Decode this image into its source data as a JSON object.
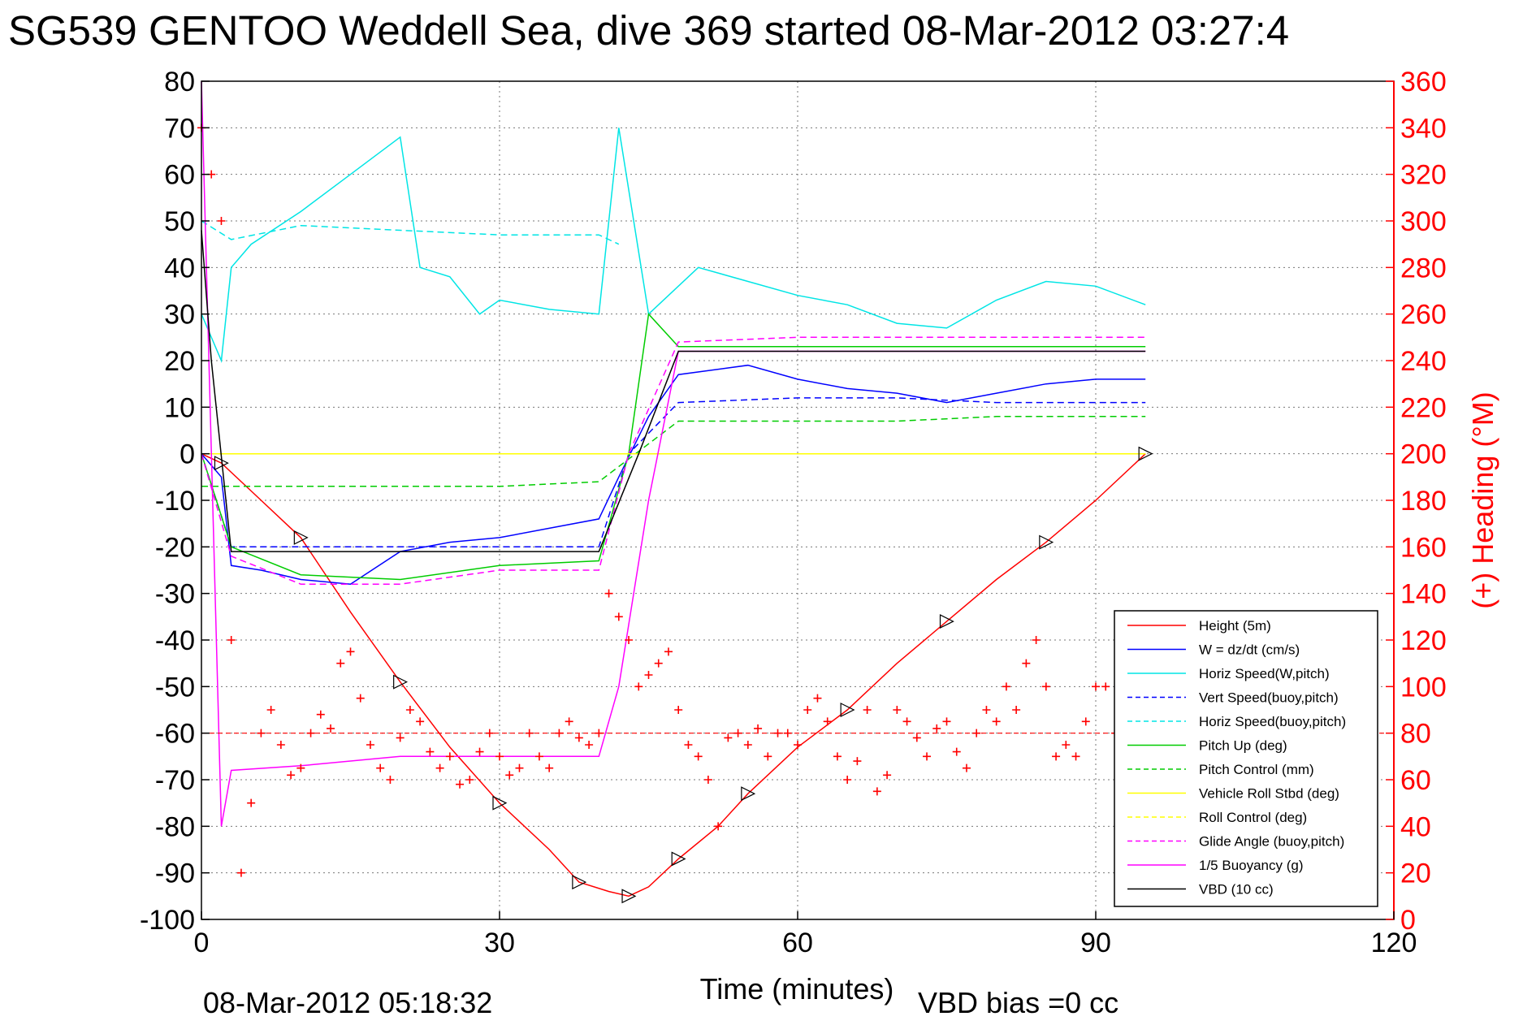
{
  "chart_data": {
    "type": "line",
    "title": "SG539 GENTOO Weddell Sea, dive 369 started 08-Mar-2012 03:27:4",
    "xlabel": "Time (minutes)",
    "ylabel": "",
    "ylabel_right": "(+) Heading (°M)",
    "xlim": [
      0,
      120
    ],
    "ylim": [
      -100,
      80
    ],
    "ylim_right": [
      0,
      360
    ],
    "x_ticks": [
      0,
      30,
      60,
      90,
      120
    ],
    "y_ticks": [
      -100,
      -90,
      -80,
      -70,
      -60,
      -50,
      -40,
      -30,
      -20,
      -10,
      0,
      10,
      20,
      30,
      40,
      50,
      60,
      70,
      80
    ],
    "y_ticks_right": [
      0,
      20,
      40,
      60,
      80,
      100,
      120,
      140,
      160,
      180,
      200,
      220,
      240,
      260,
      280,
      300,
      320,
      340,
      360
    ],
    "grid": true,
    "legend_position": "bottom-right",
    "footer_left": "08-Mar-2012 05:18:32",
    "footer_right": "VBD bias =0 cc",
    "series": [
      {
        "name": "Height (5m)",
        "color": "#ff0000",
        "style": "solid",
        "x": [
          0,
          2,
          5,
          10,
          15,
          20,
          25,
          30,
          35,
          38,
          41,
          43,
          45,
          48,
          52,
          55,
          60,
          65,
          70,
          75,
          80,
          85,
          90,
          95
        ],
        "y": [
          0,
          -2,
          -8,
          -18,
          -34,
          -49,
          -63,
          -75,
          -85,
          -92,
          -94,
          -95,
          -93,
          -87,
          -80,
          -73,
          -63,
          -55,
          -45,
          -36,
          -27,
          -19,
          -10,
          0
        ]
      },
      {
        "name": "W = dz/dt (cm/s)",
        "color": "#0000ff",
        "style": "solid",
        "x": [
          0,
          2,
          3,
          6,
          10,
          15,
          20,
          25,
          30,
          35,
          40,
          42,
          45,
          48,
          55,
          60,
          65,
          70,
          75,
          80,
          85,
          90,
          95
        ],
        "y": [
          0,
          -5,
          -24,
          -25,
          -27,
          -28,
          -21,
          -19,
          -18,
          -16,
          -14,
          -5,
          8,
          17,
          19,
          16,
          14,
          13,
          11,
          13,
          15,
          16,
          16
        ]
      },
      {
        "name": "Horiz Speed(W,pitch)",
        "color": "#00e5e5",
        "style": "solid",
        "x": [
          0,
          2,
          3,
          5,
          10,
          15,
          20,
          22,
          25,
          28,
          30,
          35,
          40,
          42,
          45,
          50,
          55,
          60,
          65,
          70,
          75,
          80,
          85,
          90,
          95
        ],
        "y": [
          30,
          20,
          40,
          45,
          52,
          60,
          68,
          40,
          38,
          30,
          33,
          31,
          30,
          70,
          30,
          40,
          37,
          34,
          32,
          28,
          27,
          33,
          37,
          36,
          32
        ]
      },
      {
        "name": "Vert Speed(buoy,pitch)",
        "color": "#0000ff",
        "style": "dashed",
        "x": [
          0,
          3,
          10,
          20,
          30,
          40,
          43,
          48,
          60,
          70,
          80,
          90,
          95
        ],
        "y": [
          0,
          -20,
          -20,
          -20,
          -20,
          -20,
          0,
          11,
          12,
          12,
          11,
          11,
          11
        ]
      },
      {
        "name": "Horiz Speed(buoy,pitch)",
        "color": "#00e5e5",
        "style": "dashed",
        "x": [
          0,
          3,
          10,
          20,
          30,
          40,
          42
        ],
        "y": [
          50,
          46,
          49,
          48,
          47,
          47,
          45
        ]
      },
      {
        "name": "Pitch Up (deg)",
        "color": "#00cc00",
        "style": "solid",
        "x": [
          0,
          3,
          10,
          20,
          30,
          40,
          43,
          45,
          48,
          60,
          70,
          80,
          90,
          95
        ],
        "y": [
          0,
          -20,
          -26,
          -27,
          -24,
          -23,
          0,
          30,
          23,
          23,
          23,
          23,
          23,
          23
        ]
      },
      {
        "name": "Pitch Control (mm)",
        "color": "#00cc00",
        "style": "dashed",
        "x": [
          0,
          3,
          10,
          20,
          30,
          40,
          48,
          60,
          70,
          80,
          90,
          95
        ],
        "y": [
          -7,
          -7,
          -7,
          -7,
          -7,
          -6,
          7,
          7,
          7,
          8,
          8,
          8
        ]
      },
      {
        "name": "Vehicle Roll Stbd (deg)",
        "color": "#ffff00",
        "style": "solid",
        "x": [
          0,
          5,
          10,
          15,
          20,
          25,
          30,
          35,
          40,
          45,
          50,
          55,
          60,
          65,
          70,
          75,
          80,
          85,
          90,
          95
        ],
        "y": [
          0,
          0,
          0,
          0,
          0,
          0,
          0,
          0,
          0,
          0,
          0,
          0,
          0,
          0,
          0,
          0,
          0,
          0,
          0,
          0
        ]
      },
      {
        "name": "Roll Control (deg)",
        "color": "#ffff00",
        "style": "dashed",
        "x": [
          0,
          5,
          10,
          20,
          30,
          40,
          50,
          60,
          70,
          80,
          90,
          95
        ],
        "y": [
          0,
          0,
          0,
          0,
          0,
          0,
          0,
          0,
          0,
          0,
          0,
          0
        ]
      },
      {
        "name": "Glide Angle (buoy,pitch)",
        "color": "#ff00ff",
        "style": "dashed",
        "x": [
          0,
          3,
          10,
          20,
          30,
          40,
          43,
          48,
          60,
          70,
          80,
          90,
          95
        ],
        "y": [
          0,
          -22,
          -28,
          -28,
          -25,
          -25,
          0,
          24,
          25,
          25,
          25,
          25,
          25
        ]
      },
      {
        "name": "1/5 Buoyancy (g)",
        "color": "#ff00ff",
        "style": "solid",
        "x": [
          0,
          2,
          3,
          10,
          20,
          30,
          40,
          42,
          45,
          48,
          60,
          70,
          80,
          90,
          95
        ],
        "y": [
          80,
          -80,
          -68,
          -67,
          -65,
          -65,
          -65,
          -50,
          -10,
          22,
          22,
          22,
          22,
          22,
          22
        ]
      },
      {
        "name": "VBD (10 cc)",
        "color": "#000000",
        "style": "solid",
        "x": [
          0,
          1,
          3,
          10,
          20,
          30,
          40,
          44,
          48,
          60,
          70,
          80,
          90,
          95
        ],
        "y": [
          48,
          20,
          -21,
          -21,
          -21,
          -21,
          -21,
          0,
          22,
          22,
          22,
          22,
          22,
          22
        ]
      }
    ],
    "heading": {
      "name": "Heading",
      "color": "#ff0000",
      "marker": "+",
      "axis": "right",
      "x": [
        0,
        1,
        2,
        3,
        4,
        5,
        6,
        7,
        8,
        9,
        10,
        11,
        12,
        13,
        14,
        15,
        16,
        17,
        18,
        19,
        20,
        21,
        22,
        23,
        24,
        25,
        26,
        27,
        28,
        29,
        30,
        31,
        32,
        33,
        34,
        35,
        36,
        37,
        38,
        39,
        40,
        41,
        42,
        43,
        44,
        45,
        46,
        47,
        48,
        49,
        50,
        51,
        52,
        53,
        54,
        55,
        56,
        57,
        58,
        59,
        60,
        61,
        62,
        63,
        64,
        65,
        66,
        67,
        68,
        69,
        70,
        71,
        72,
        73,
        74,
        75,
        76,
        77,
        78,
        79,
        80,
        81,
        82,
        83,
        84,
        85,
        86,
        87,
        88,
        89,
        90,
        91,
        92,
        93,
        94
      ],
      "y": [
        340,
        320,
        300,
        120,
        20,
        50,
        80,
        90,
        75,
        62,
        65,
        80,
        88,
        82,
        110,
        115,
        95,
        75,
        65,
        60,
        78,
        90,
        85,
        72,
        65,
        70,
        58,
        60,
        72,
        80,
        70,
        62,
        65,
        80,
        70,
        65,
        80,
        85,
        78,
        75,
        80,
        140,
        130,
        120,
        100,
        105,
        110,
        115,
        90,
        75,
        70,
        60,
        40,
        78,
        80,
        75,
        82,
        70,
        80,
        80,
        75,
        90,
        95,
        85,
        70,
        60,
        68,
        90,
        55,
        62,
        90,
        85,
        78,
        70,
        82,
        85,
        72,
        65,
        80,
        90,
        85,
        100,
        90,
        110,
        120,
        100,
        70,
        75,
        70,
        85,
        100,
        100,
        80,
        75,
        70
      ]
    },
    "heading_target": {
      "name": "Target Heading",
      "color": "#ff0000",
      "style": "dashed",
      "axis": "right",
      "y": 80
    },
    "legend_entries": [
      {
        "label": "Height (5m)",
        "color": "#ff0000",
        "style": "solid"
      },
      {
        "label": "W = dz/dt (cm/s)",
        "color": "#0000ff",
        "style": "solid"
      },
      {
        "label": "Horiz Speed(W,pitch)",
        "color": "#00e5e5",
        "style": "solid"
      },
      {
        "label": "Vert Speed(buoy,pitch)",
        "color": "#0000ff",
        "style": "dashed"
      },
      {
        "label": "Horiz Speed(buoy,pitch)",
        "color": "#00e5e5",
        "style": "dashed"
      },
      {
        "label": "Pitch Up (deg)",
        "color": "#00cc00",
        "style": "solid"
      },
      {
        "label": "Pitch Control (mm)",
        "color": "#00cc00",
        "style": "dashed"
      },
      {
        "label": "Vehicle Roll Stbd (deg)",
        "color": "#ffff00",
        "style": "solid"
      },
      {
        "label": "Roll Control (deg)",
        "color": "#ffff00",
        "style": "dashed"
      },
      {
        "label": "Glide Angle (buoy,pitch)",
        "color": "#ff00ff",
        "style": "dashed"
      },
      {
        "label": "1/5 Buoyancy (g)",
        "color": "#ff00ff",
        "style": "solid"
      },
      {
        "label": "VBD (10 cc)",
        "color": "#000000",
        "style": "solid"
      }
    ]
  }
}
